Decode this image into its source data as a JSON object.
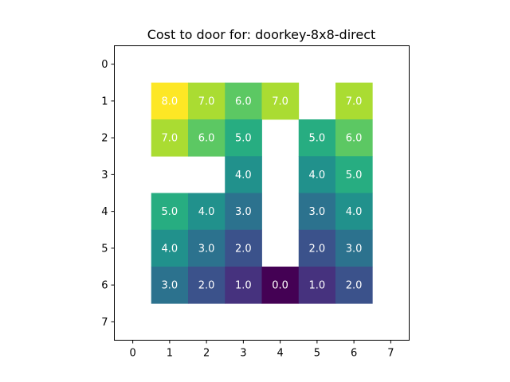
{
  "chart_data": {
    "type": "heatmap",
    "title": "Cost to door for: doorkey-8x8-direct",
    "xlabel": "",
    "ylabel": "",
    "x_ticks": [
      "0",
      "1",
      "2",
      "3",
      "4",
      "5",
      "6",
      "7"
    ],
    "y_ticks": [
      "0",
      "1",
      "2",
      "3",
      "4",
      "5",
      "6",
      "7"
    ],
    "colormap": "viridis",
    "vmin": 0,
    "vmax": 8,
    "grid": false,
    "values": [
      [
        null,
        null,
        null,
        null,
        null,
        null,
        null,
        null
      ],
      [
        null,
        8.0,
        7.0,
        6.0,
        7.0,
        null,
        7.0,
        null
      ],
      [
        null,
        7.0,
        6.0,
        5.0,
        null,
        5.0,
        6.0,
        null
      ],
      [
        null,
        null,
        null,
        4.0,
        null,
        4.0,
        5.0,
        null
      ],
      [
        null,
        5.0,
        4.0,
        3.0,
        null,
        3.0,
        4.0,
        null
      ],
      [
        null,
        4.0,
        3.0,
        2.0,
        null,
        2.0,
        3.0,
        null
      ],
      [
        null,
        3.0,
        2.0,
        1.0,
        0.0,
        1.0,
        2.0,
        null
      ],
      [
        null,
        null,
        null,
        null,
        null,
        null,
        null,
        null
      ]
    ],
    "cell_labels": [
      [
        null,
        null,
        null,
        null,
        null,
        null,
        null,
        null
      ],
      [
        null,
        "8.0",
        "7.0",
        "6.0",
        "7.0",
        null,
        "7.0",
        null
      ],
      [
        null,
        "7.0",
        "6.0",
        "5.0",
        null,
        "5.0",
        "6.0",
        null
      ],
      [
        null,
        null,
        null,
        "4.0",
        null,
        "4.0",
        "5.0",
        null
      ],
      [
        null,
        "5.0",
        "4.0",
        "3.0",
        null,
        "3.0",
        "4.0",
        null
      ],
      [
        null,
        "4.0",
        "3.0",
        "2.0",
        null,
        "2.0",
        "3.0",
        null
      ],
      [
        null,
        "3.0",
        "2.0",
        "1.0",
        "0.0",
        "1.0",
        "2.0",
        null
      ],
      [
        null,
        null,
        null,
        null,
        null,
        null,
        null,
        null
      ]
    ]
  }
}
